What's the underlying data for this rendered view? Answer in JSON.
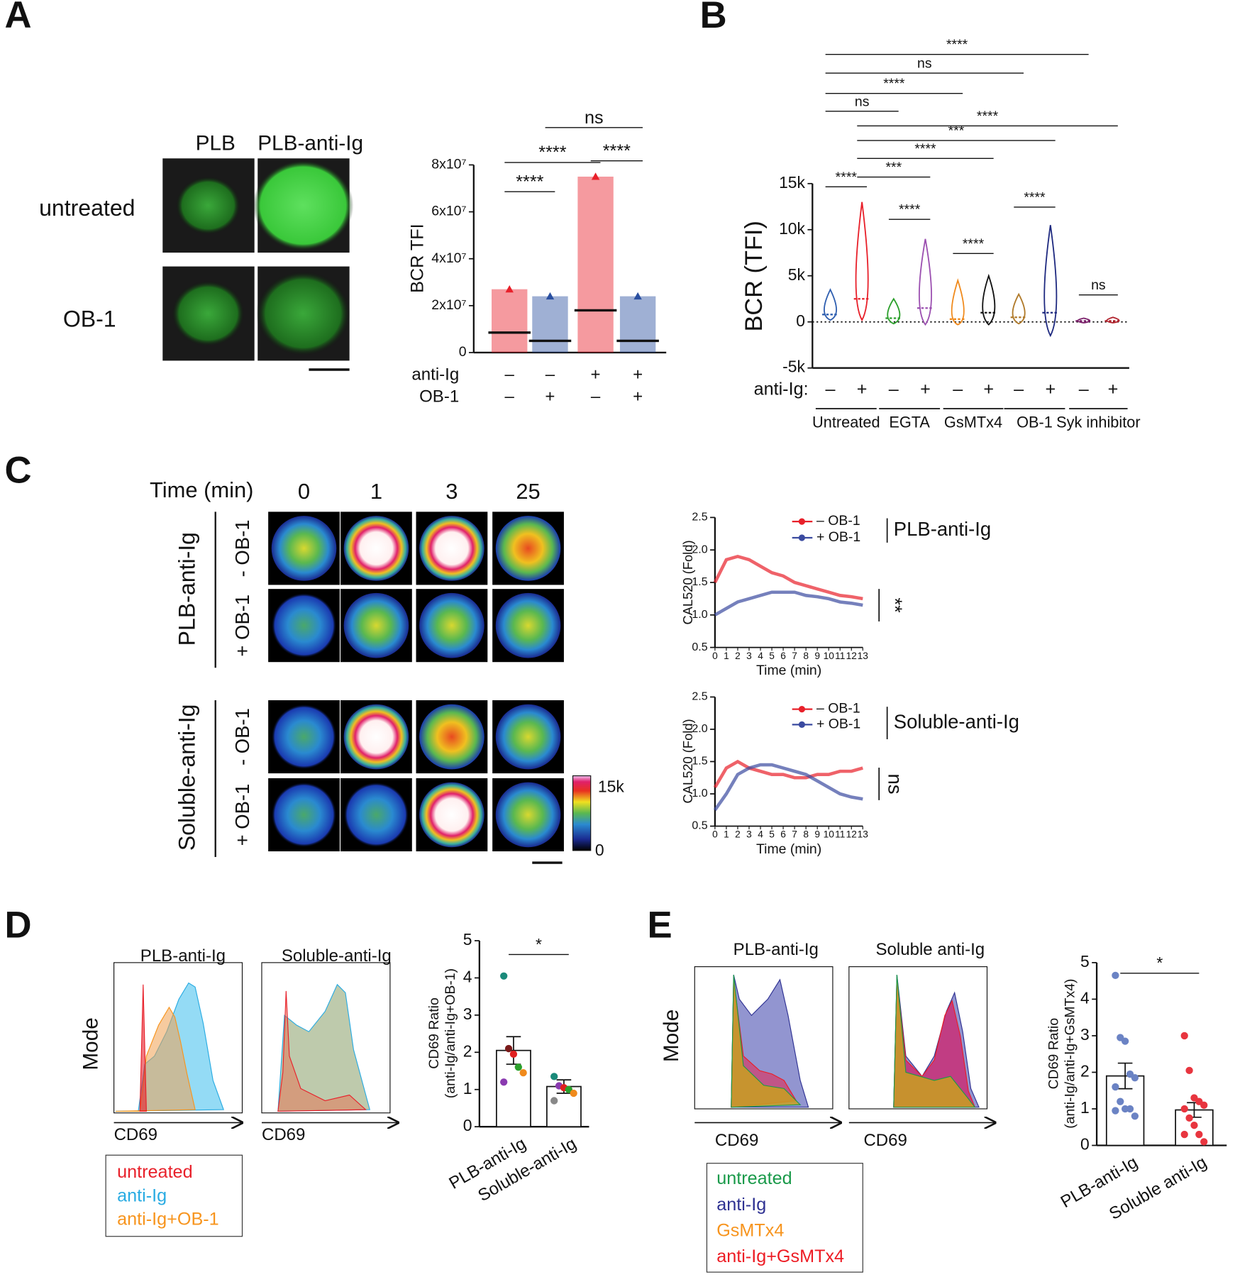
{
  "panel_labels": [
    "A",
    "B",
    "C",
    "D",
    "E"
  ],
  "panel_a": {
    "columns": [
      "PLB",
      "PLB-anti-Ig"
    ],
    "rows": [
      "untreated",
      "OB-1"
    ]
  },
  "panel_c": {
    "time_label": "Time (min)",
    "times": [
      "0",
      "1",
      "3",
      "25"
    ],
    "groups": [
      {
        "name": "PLB-anti-Ig",
        "rows": [
          "- OB-1",
          "+ OB-1"
        ]
      },
      {
        "name": "Soluble-anti-Ig",
        "rows": [
          "- OB-1",
          "+ OB-1"
        ]
      }
    ],
    "colorbar_labels": [
      "15k",
      "0"
    ]
  },
  "panel_d": {
    "titles": [
      "PLB-anti-Ig",
      "Soluble-anti-Ig"
    ],
    "y_label": "Mode",
    "x_label": "CD69",
    "legend": [
      {
        "name": "untreated",
        "color": "#e8202a"
      },
      {
        "name": "anti-Ig",
        "color": "#29abe2"
      },
      {
        "name": "anti-Ig+OB-1",
        "color": "#f7941d"
      }
    ]
  },
  "panel_e": {
    "titles": [
      "PLB-anti-Ig",
      "Soluble anti-Ig"
    ],
    "y_label": "Mode",
    "x_label": "CD69",
    "legend": [
      {
        "name": "untreated",
        "color": "#1a9a4a"
      },
      {
        "name": "anti-Ig",
        "color": "#2e3192"
      },
      {
        "name": "GsMTx4",
        "color": "#f7941d"
      },
      {
        "name": "anti-Ig+GsMTx4",
        "color": "#ed1c24"
      }
    ]
  },
  "chart_data": [
    {
      "type": "dotplot",
      "y_label": "BCR TFI",
      "ylim": [
        0,
        80000000
      ],
      "yticks": [
        0,
        {
          "value": 20000000,
          "label": "2x10⁷"
        },
        {
          "value": 40000000,
          "label": "4x10⁷"
        },
        {
          "value": 60000000,
          "label": "6x10⁷"
        },
        {
          "value": 80000000,
          "label": "8x10⁷"
        }
      ],
      "conditions": [
        {
          "name": "anti-Ig",
          "levels": [
            "–",
            "–",
            "+",
            "+"
          ]
        },
        {
          "name": "OB-1",
          "levels": [
            "–",
            "+",
            "–",
            "+"
          ]
        }
      ],
      "values": [
        8500000,
        5000000,
        18000000,
        5000000
      ],
      "max": [
        27000000,
        24000000,
        75000000,
        24000000
      ],
      "colors": [
        "#e8202a",
        "#2a4fa0",
        "#e8202a",
        "#2a4fa0"
      ],
      "comparisons": [
        {
          "from": 0,
          "to": 1,
          "label": "****"
        },
        {
          "from": 0,
          "to": 2,
          "label": "****"
        },
        {
          "from": 2,
          "to": 3,
          "label": "****"
        },
        {
          "from": 1,
          "to": 3,
          "label": "ns"
        }
      ]
    },
    {
      "type": "violin",
      "y_label": "BCR (TFI)",
      "ylim": [
        -5000,
        15000
      ],
      "yticks": [
        {
          "value": -5000,
          "label": "-5k"
        },
        0,
        {
          "value": 5000,
          "label": "5k"
        },
        {
          "value": 10000,
          "label": "10k"
        },
        {
          "value": 15000,
          "label": "15k"
        }
      ],
      "conditions": [
        {
          "name": "anti-Ig:",
          "levels": [
            "–",
            "+",
            "–",
            "+",
            "–",
            "+",
            "–",
            "+",
            "–",
            "+"
          ]
        }
      ],
      "groups": [
        "Untreated",
        "EGTA",
        "GsMTx4",
        "OB-1",
        "Syk inhibitor"
      ],
      "values": [
        800,
        2500,
        400,
        1500,
        300,
        1000,
        500,
        1000,
        100,
        100
      ],
      "min": [
        200,
        200,
        -200,
        -300,
        -300,
        -300,
        -200,
        -1500,
        -100,
        -100
      ],
      "max": [
        3500,
        13000,
        2500,
        9000,
        4500,
        5000,
        3000,
        10500,
        400,
        500
      ],
      "colors": [
        "#2f5fb0",
        "#e8202a",
        "#2ca02c",
        "#9b4fb0",
        "#f08a1c",
        "#111111",
        "#b07a2a",
        "#1f2a80",
        "#7a1f6a",
        "#b0202a"
      ],
      "comparisons": [
        {
          "from": 0,
          "to": 1,
          "label": "****"
        },
        {
          "from": 2,
          "to": 3,
          "label": "****"
        },
        {
          "from": 4,
          "to": 5,
          "label": "****"
        },
        {
          "from": 6,
          "to": 7,
          "label": "****"
        },
        {
          "from": 8,
          "to": 9,
          "label": "ns"
        },
        {
          "from": 1,
          "to": 3,
          "label": "***"
        },
        {
          "from": 1,
          "to": 5,
          "label": "****"
        },
        {
          "from": 1,
          "to": 7,
          "label": "***"
        },
        {
          "from": 1,
          "to": 9,
          "label": "****"
        },
        {
          "from": 0,
          "to": 2,
          "label": "ns"
        },
        {
          "from": 0,
          "to": 4,
          "label": "****"
        },
        {
          "from": 0,
          "to": 6,
          "label": "ns"
        },
        {
          "from": 0,
          "to": 8,
          "label": "****"
        }
      ]
    },
    {
      "type": "line",
      "y_label": "CAL520 (Fold)",
      "x_label": "Time (min)",
      "x": [
        0,
        1,
        2,
        3,
        4,
        5,
        6,
        7,
        8,
        9,
        10,
        11,
        12,
        13
      ],
      "xlim": [
        0,
        13
      ],
      "xticks": [
        0,
        1,
        2,
        3,
        4,
        5,
        6,
        7,
        8,
        9,
        10,
        11,
        12,
        13
      ],
      "ylim": [
        0.5,
        2.5
      ],
      "yticks": [
        0.5,
        {
          "value": 1,
          "label": "1.0"
        },
        1.5,
        {
          "value": 2,
          "label": "2.0"
        },
        2.5
      ],
      "series": [
        {
          "name": "– OB-1",
          "color": "#e8202a",
          "values": [
            1.5,
            1.85,
            1.9,
            1.85,
            1.75,
            1.65,
            1.6,
            1.5,
            1.45,
            1.4,
            1.35,
            1.3,
            1.28,
            1.25
          ]
        },
        {
          "name": "+ OB-1",
          "color": "#3a4aa0",
          "values": [
            1.0,
            1.1,
            1.2,
            1.25,
            1.3,
            1.35,
            1.35,
            1.35,
            1.3,
            1.28,
            1.25,
            1.2,
            1.18,
            1.15
          ]
        }
      ],
      "condition": "PLB-anti-Ig",
      "significance": "**"
    },
    {
      "type": "line",
      "y_label": "CAL520 (Fold)",
      "x_label": "Time (min)",
      "x": [
        0,
        1,
        2,
        3,
        4,
        5,
        6,
        7,
        8,
        9,
        10,
        11,
        12,
        13
      ],
      "xlim": [
        0,
        13
      ],
      "xticks": [
        0,
        1,
        2,
        3,
        4,
        5,
        6,
        7,
        8,
        9,
        10,
        11,
        12,
        13
      ],
      "ylim": [
        0.5,
        2.5
      ],
      "yticks": [
        0.5,
        {
          "value": 1,
          "label": "1.0"
        },
        1.5,
        {
          "value": 2,
          "label": "2.0"
        },
        2.5
      ],
      "series": [
        {
          "name": "– OB-1",
          "color": "#e8202a",
          "values": [
            1.1,
            1.4,
            1.5,
            1.4,
            1.35,
            1.3,
            1.3,
            1.25,
            1.25,
            1.3,
            1.3,
            1.35,
            1.35,
            1.4
          ]
        },
        {
          "name": "+ OB-1",
          "color": "#3a4aa0",
          "values": [
            0.75,
            1.0,
            1.3,
            1.4,
            1.45,
            1.45,
            1.4,
            1.35,
            1.3,
            1.2,
            1.1,
            1.0,
            0.95,
            0.92
          ]
        }
      ],
      "condition": "Soluble-anti-Ig",
      "significance": "ns"
    },
    {
      "type": "bar",
      "y_label": [
        "CD69 Ratio",
        "(anti-Ig/anti-Ig+OB-1)"
      ],
      "categories": [
        "PLB-anti-Ig",
        "Soluble-anti-Ig"
      ],
      "values": [
        2.05,
        1.08
      ],
      "errors": [
        0.37,
        0.18
      ],
      "ylim": [
        0,
        5
      ],
      "yticks": [
        0,
        1,
        2,
        3,
        4,
        5
      ],
      "points": [
        [
          4.05,
          2.1,
          1.95,
          1.6,
          1.45,
          1.2
        ],
        [
          1.35,
          1.1,
          1.05,
          1.0,
          0.9,
          0.7
        ]
      ],
      "point_colors": [
        [
          "#1a8a7a",
          "#7a1a1a",
          "#e02020",
          "#2ca02c",
          "#f08a1c",
          "#8a3ab0"
        ],
        [
          "#1a8a7a",
          "#8a3ab0",
          "#e02020",
          "#2ca02c",
          "#f08a1c",
          "#888888"
        ]
      ],
      "comparisons": [
        {
          "from": 0,
          "to": 1,
          "label": "*"
        }
      ]
    },
    {
      "type": "bar",
      "y_label": [
        "CD69 Ratio",
        "(anti-Ig/anti-Ig+GsMTx4)"
      ],
      "categories": [
        "PLB-anti-Ig",
        "Soluble anti-Ig"
      ],
      "values": [
        1.9,
        0.97
      ],
      "errors": [
        0.35,
        0.2
      ],
      "ylim": [
        0,
        5
      ],
      "yticks": [
        0,
        1,
        2,
        3,
        4,
        5
      ],
      "points": [
        [
          4.65,
          2.95,
          2.85,
          1.95,
          1.85,
          1.6,
          1.2,
          1.0,
          1.0,
          0.8,
          0.95
        ],
        [
          3.0,
          2.05,
          1.3,
          1.2,
          1.1,
          1.0,
          0.75,
          0.55,
          0.3,
          0.1,
          0.3
        ]
      ],
      "colors": [
        "#6b83c4",
        "#e8353f"
      ],
      "comparisons": [
        {
          "from": 0,
          "to": 1,
          "label": "*"
        }
      ]
    }
  ]
}
